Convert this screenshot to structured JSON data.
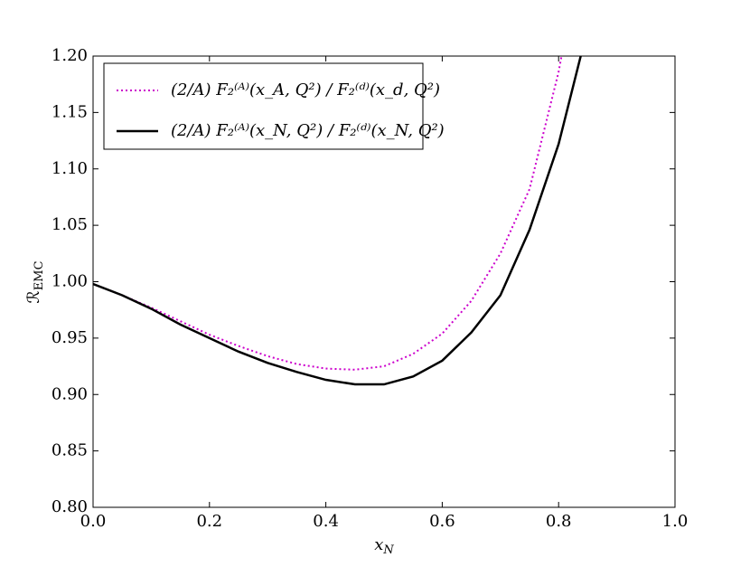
{
  "chart_data": {
    "type": "line",
    "xlabel": "x",
    "xlabel_sub": "N",
    "ylabel": "ℛ",
    "ylabel_sub": "EMC",
    "xlim": [
      0,
      1.0
    ],
    "ylim": [
      0.8,
      1.2
    ],
    "xticks": [
      {
        "value": 0,
        "label": "0.0"
      },
      {
        "value": 0.2,
        "label": "0.2"
      },
      {
        "value": 0.4,
        "label": "0.4"
      },
      {
        "value": 0.6,
        "label": "0.6"
      },
      {
        "value": 0.8,
        "label": "0.8"
      },
      {
        "value": 1.0,
        "label": "1.0"
      }
    ],
    "yticks": [
      {
        "value": 0.8,
        "label": "0.80"
      },
      {
        "value": 0.85,
        "label": "0.85"
      },
      {
        "value": 0.9,
        "label": "0.90"
      },
      {
        "value": 0.95,
        "label": "0.95"
      },
      {
        "value": 1.0,
        "label": "1.00"
      },
      {
        "value": 1.05,
        "label": "1.05"
      },
      {
        "value": 1.1,
        "label": "1.10"
      },
      {
        "value": 1.15,
        "label": "1.15"
      },
      {
        "value": 1.2,
        "label": "1.20"
      }
    ],
    "legend_position": "upper left",
    "series": [
      {
        "name": "(2/A) F₂⁽ᴬ⁾(x_A, Q²) / F₂⁽ᵈ⁾(x_d, Q²)",
        "color": "#cc00cc",
        "style": "dotted",
        "x": [
          0,
          0.05,
          0.1,
          0.15,
          0.2,
          0.25,
          0.3,
          0.35,
          0.4,
          0.45,
          0.5,
          0.55,
          0.6,
          0.65,
          0.7,
          0.75,
          0.8,
          0.805
        ],
        "values": [
          0.998,
          0.988,
          0.977,
          0.965,
          0.953,
          0.943,
          0.934,
          0.927,
          0.923,
          0.922,
          0.925,
          0.936,
          0.954,
          0.983,
          1.025,
          1.082,
          1.186,
          1.2
        ]
      },
      {
        "name": "(2/A) F₂⁽ᴬ⁾(x_N, Q²) / F₂⁽ᵈ⁾(x_N, Q²)",
        "color": "#000000",
        "style": "solid",
        "x": [
          0,
          0.05,
          0.1,
          0.15,
          0.2,
          0.25,
          0.3,
          0.35,
          0.4,
          0.45,
          0.5,
          0.55,
          0.6,
          0.65,
          0.7,
          0.75,
          0.8,
          0.838
        ],
        "values": [
          0.998,
          0.988,
          0.976,
          0.962,
          0.95,
          0.938,
          0.928,
          0.92,
          0.913,
          0.909,
          0.909,
          0.916,
          0.93,
          0.955,
          0.988,
          1.046,
          1.122,
          1.2
        ]
      }
    ]
  }
}
